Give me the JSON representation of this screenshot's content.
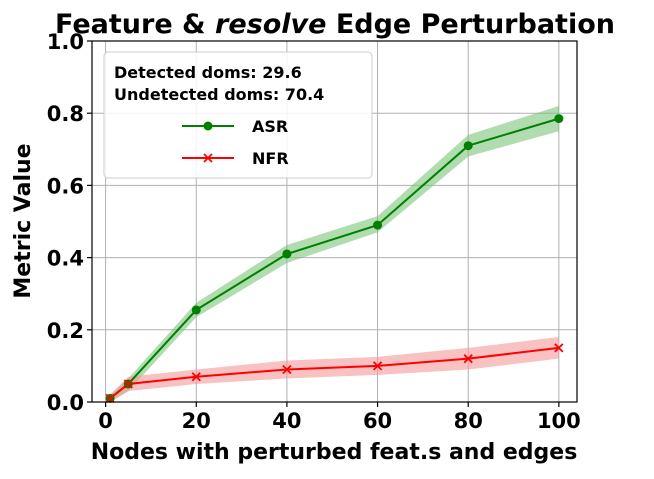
{
  "chart_data": {
    "type": "line",
    "title": {
      "prefix": "Feature & ",
      "emphasis": "resolve",
      "suffix": " Edge Perturbation"
    },
    "xlabel": "Nodes with perturbed feat.s and edges",
    "ylabel": "Metric Value",
    "x": [
      1,
      5,
      20,
      40,
      60,
      80,
      100
    ],
    "xlim": [
      -3,
      104
    ],
    "ylim": [
      0,
      1
    ],
    "xticks": [
      0,
      20,
      40,
      60,
      80,
      100
    ],
    "yticks": [
      0.0,
      0.2,
      0.4,
      0.6,
      0.8,
      1.0
    ],
    "xtick_labels": [
      "0",
      "20",
      "40",
      "60",
      "80",
      "100"
    ],
    "ytick_labels": [
      "0.0",
      "0.2",
      "0.4",
      "0.6",
      "0.8",
      "1.0"
    ],
    "grid": true,
    "legend_position": "upper-left",
    "legend_notes": [
      "Detected doms: 29.6",
      "Undetected doms: 70.4"
    ],
    "series": [
      {
        "name": "ASR",
        "color": "#008000",
        "band_color": "#7cc47c",
        "marker": "circle",
        "values": [
          0.01,
          0.05,
          0.255,
          0.41,
          0.49,
          0.71,
          0.785
        ],
        "lower": [
          0.0,
          0.03,
          0.235,
          0.385,
          0.47,
          0.68,
          0.75
        ],
        "upper": [
          0.02,
          0.065,
          0.275,
          0.435,
          0.515,
          0.74,
          0.82
        ]
      },
      {
        "name": "NFR",
        "color": "#ff0000",
        "band_color": "#f59a9a",
        "marker": "x",
        "values": [
          0.01,
          0.05,
          0.07,
          0.09,
          0.1,
          0.12,
          0.15
        ],
        "lower": [
          0.0,
          0.03,
          0.05,
          0.065,
          0.075,
          0.09,
          0.12
        ],
        "upper": [
          0.02,
          0.07,
          0.09,
          0.115,
          0.125,
          0.15,
          0.18
        ]
      }
    ]
  }
}
